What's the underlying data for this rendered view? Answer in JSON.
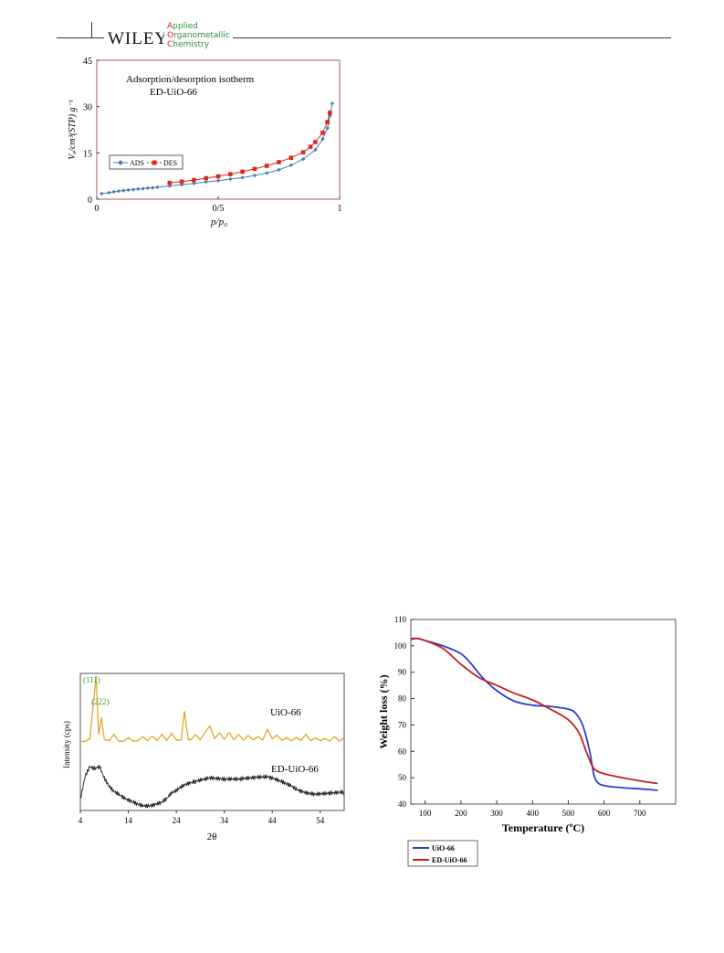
{
  "header": {
    "publisher_logo": "WILEY",
    "journal_lines": [
      {
        "cap": "A",
        "rest": "pplied"
      },
      {
        "cap": "O",
        "rest": "rganometallic"
      },
      {
        "cap": "C",
        "rest": "hemistry"
      }
    ]
  },
  "chart_data": [
    {
      "type": "line",
      "title": "Adsorption/desorption isotherm",
      "subtitle": "ED-UiO-66",
      "xlabel": "p/p₀",
      "ylabel": "Vₐ/cm³(STP) g⁻¹",
      "xlim": [
        0,
        1
      ],
      "ylim": [
        0,
        45
      ],
      "xticks": [
        "0",
        "0/5",
        "1"
      ],
      "yticks": [
        "0",
        "15",
        "30",
        "45"
      ],
      "legend_position": "middle-left",
      "series": [
        {
          "name": "ADS",
          "color": "#4a7fae",
          "marker": "diamond",
          "x": [
            0.02,
            0.05,
            0.07,
            0.09,
            0.11,
            0.13,
            0.15,
            0.17,
            0.19,
            0.21,
            0.23,
            0.25,
            0.3,
            0.35,
            0.4,
            0.45,
            0.5,
            0.55,
            0.6,
            0.65,
            0.7,
            0.75,
            0.8,
            0.85,
            0.9,
            0.93,
            0.95,
            0.96,
            0.97
          ],
          "y": [
            1.8,
            2.1,
            2.4,
            2.6,
            2.8,
            3.0,
            3.1,
            3.3,
            3.4,
            3.6,
            3.7,
            3.9,
            4.3,
            4.7,
            5.1,
            5.6,
            6.0,
            6.5,
            7.0,
            7.7,
            8.5,
            9.5,
            11.0,
            13.0,
            16.0,
            19.5,
            23.0,
            27.0,
            31.0
          ]
        },
        {
          "name": "DES",
          "color": "#d82a1e",
          "marker": "square",
          "x": [
            0.3,
            0.35,
            0.4,
            0.45,
            0.5,
            0.55,
            0.6,
            0.65,
            0.7,
            0.75,
            0.8,
            0.85,
            0.88,
            0.9,
            0.93,
            0.95,
            0.96
          ],
          "y": [
            5.3,
            5.7,
            6.2,
            6.8,
            7.4,
            8.1,
            8.9,
            9.8,
            10.8,
            12.0,
            13.4,
            15.2,
            17.0,
            18.5,
            21.5,
            25.0,
            28.0
          ]
        }
      ]
    },
    {
      "type": "line",
      "xlabel": "2θ",
      "ylabel": "Intensity (cps)",
      "xlim": [
        4,
        59
      ],
      "xticks": [
        "4",
        "14",
        "24",
        "34",
        "44",
        "54"
      ],
      "annotations": [
        "(111)",
        "(222)"
      ],
      "series": [
        {
          "name": "UiO-66",
          "color": "#e0a92b",
          "x": [
            4,
            5,
            6,
            7.3,
            7.8,
            8.4,
            9,
            10,
            11,
            12,
            13,
            14,
            15,
            16,
            17,
            18,
            19,
            20,
            21,
            22,
            23,
            24,
            25,
            25.7,
            26.5,
            27,
            28,
            29,
            30,
            31,
            32,
            33,
            34,
            35,
            36,
            37,
            38,
            39,
            40,
            41,
            42,
            43,
            44,
            45,
            46,
            47,
            48,
            49,
            50,
            51,
            52,
            53,
            54,
            55,
            56,
            57,
            58,
            59
          ],
          "y": [
            0.3,
            0.4,
            1.0,
            16.0,
            2.0,
            6.0,
            0.8,
            0.5,
            2.0,
            0.4,
            0.4,
            1.2,
            0.4,
            0.5,
            1.5,
            0.5,
            1.6,
            0.6,
            2.0,
            0.6,
            2.2,
            0.7,
            0.6,
            7.5,
            0.8,
            0.7,
            2.0,
            0.7,
            2.5,
            4.0,
            1.0,
            2.4,
            0.8,
            2.5,
            0.7,
            2.0,
            0.6,
            1.8,
            0.7,
            1.5,
            0.7,
            3.2,
            1.0,
            1.8,
            0.6,
            1.2,
            0.5,
            1.3,
            0.6,
            2.0,
            0.5,
            1.2,
            0.5,
            1.0,
            0.4,
            1.5,
            0.4,
            1.2
          ]
        },
        {
          "name": "ED-UiO-66",
          "color": "#1a1a1a",
          "x": [
            4,
            5,
            6,
            7,
            8,
            9,
            10,
            11,
            12,
            13,
            14,
            15,
            16,
            17,
            18,
            19,
            20,
            21,
            22,
            23,
            24,
            25,
            26,
            27,
            28,
            29,
            30,
            31,
            32,
            33,
            34,
            35,
            36,
            37,
            38,
            39,
            40,
            41,
            42,
            43,
            44,
            45,
            46,
            47,
            48,
            49,
            50,
            51,
            52,
            53,
            54,
            55,
            56,
            57,
            58,
            59
          ],
          "y": [
            2,
            6,
            7.5,
            7,
            7.2,
            5,
            3.5,
            2.5,
            2,
            1.5,
            1.2,
            1,
            0.8,
            0.7,
            0.8,
            1,
            1.3,
            1.5,
            2,
            2.8,
            3,
            3.5,
            3.8,
            4,
            4.2,
            4.5,
            4.8,
            5.2,
            5.3,
            5.4,
            5.4,
            5.5,
            5.5,
            5.4,
            5.4,
            5.3,
            5.2,
            5.1,
            5,
            5,
            4.8,
            4.6,
            4.4,
            4.2,
            4,
            3.6,
            3.4,
            3.2,
            3,
            2.8,
            2.7,
            2.6,
            2.5,
            2.4,
            2.4,
            2.3
          ]
        }
      ]
    },
    {
      "type": "line",
      "xlabel": "Temperature (ºC)",
      "ylabel": "Weight loss (%)",
      "xlim": [
        60,
        800
      ],
      "ylim": [
        40,
        110
      ],
      "xticks": [
        "100",
        "200",
        "300",
        "400",
        "500",
        "600",
        "700"
      ],
      "yticks": [
        "40",
        "50",
        "60",
        "70",
        "80",
        "90",
        "100",
        "110"
      ],
      "legend_position": "bottom-left",
      "series": [
        {
          "name": "UiO-66",
          "color": "#2b3fd0",
          "x": [
            60,
            80,
            100,
            150,
            200,
            230,
            260,
            300,
            350,
            400,
            450,
            500,
            520,
            540,
            560,
            570,
            580,
            600,
            650,
            700,
            750
          ],
          "y": [
            102.5,
            102.8,
            102.0,
            100.0,
            97.0,
            93.0,
            88.0,
            83.0,
            79.0,
            77.5,
            77.0,
            76.0,
            74.5,
            70.0,
            60.0,
            52.0,
            48.5,
            47.0,
            46.2,
            45.8,
            45.2
          ]
        },
        {
          "name": "ED-UiO-66",
          "color": "#c42020",
          "x": [
            60,
            80,
            100,
            150,
            200,
            250,
            300,
            350,
            400,
            450,
            500,
            530,
            550,
            565,
            575,
            600,
            650,
            700,
            750
          ],
          "y": [
            102.8,
            102.8,
            102.0,
            99.0,
            93.0,
            88.0,
            85.0,
            82.0,
            79.5,
            76.0,
            72.0,
            67.0,
            60.0,
            55.0,
            53.0,
            51.5,
            50.0,
            48.8,
            47.8
          ]
        }
      ]
    }
  ]
}
